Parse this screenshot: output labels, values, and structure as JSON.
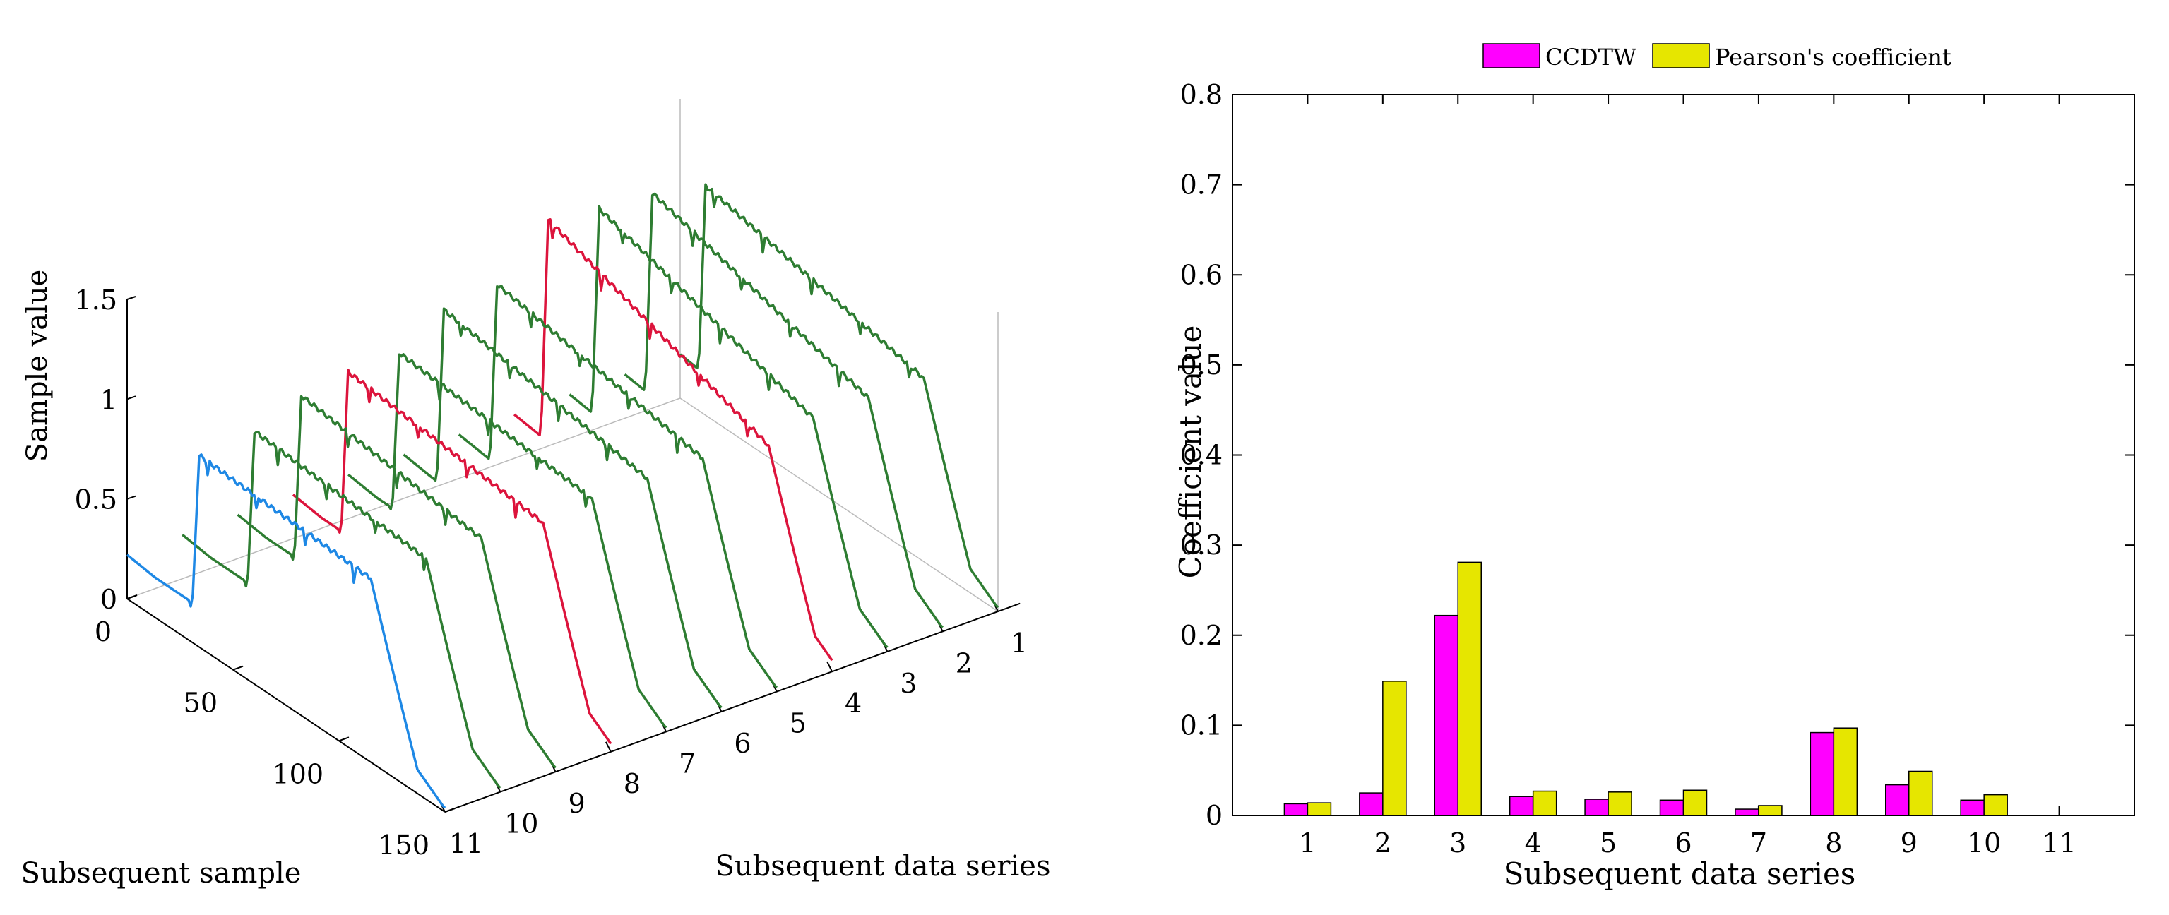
{
  "chart_data": [
    {
      "type": "line3d",
      "zlabel": "Sample value",
      "xlabel": "Subsequent sample",
      "ylabel": "Subsequent data series",
      "z_ticks": [
        "0",
        "0.5",
        "1",
        "1.5"
      ],
      "x_ticks": [
        "0",
        "50",
        "100",
        "150"
      ],
      "y_ticks": [
        "1",
        "2",
        "3",
        "4",
        "5",
        "6",
        "7",
        "8",
        "9",
        "10",
        "11"
      ],
      "zlim": [
        0,
        1.5
      ],
      "xlim": [
        0,
        150
      ],
      "ylim": [
        1,
        11
      ],
      "series": [
        {
          "series_index": 1,
          "color": "#2e7d32",
          "rise_at": 8,
          "fall_at": 115,
          "peak": 1.15
        },
        {
          "series_index": 2,
          "color": "#2e7d32",
          "rise_at": 9,
          "fall_at": 115,
          "peak": 1.22
        },
        {
          "series_index": 3,
          "color": "#2e7d32",
          "rise_at": 10,
          "fall_at": 115,
          "peak": 1.25
        },
        {
          "series_index": 4,
          "color": "#dc143c",
          "rise_at": 12,
          "fall_at": 120,
          "peak": 1.31
        },
        {
          "series_index": 5,
          "color": "#2e7d32",
          "rise_at": 14,
          "fall_at": 115,
          "peak": 1.1
        },
        {
          "series_index": 6,
          "color": "#2e7d32",
          "rise_at": 15,
          "fall_at": 115,
          "peak": 1.08
        },
        {
          "series_index": 7,
          "color": "#2e7d32",
          "rise_at": 20,
          "fall_at": 115,
          "peak": 1.0
        },
        {
          "series_index": 8,
          "color": "#dc143c",
          "rise_at": 22,
          "fall_at": 118,
          "peak": 1.02
        },
        {
          "series_index": 9,
          "color": "#2e7d32",
          "rise_at": 26,
          "fall_at": 115,
          "peak": 1.03
        },
        {
          "series_index": 10,
          "color": "#2e7d32",
          "rise_at": 30,
          "fall_at": 115,
          "peak": 0.98
        },
        {
          "series_index": 11,
          "color": "#1e88e5",
          "rise_at": 30,
          "fall_at": 115,
          "peak": 0.96
        }
      ]
    },
    {
      "type": "bar",
      "categories": [
        "1",
        "2",
        "3",
        "4",
        "5",
        "6",
        "7",
        "8",
        "9",
        "10"
      ],
      "x_ticks": [
        "1",
        "2",
        "3",
        "4",
        "5",
        "6",
        "7",
        "8",
        "9",
        "10",
        "11"
      ],
      "xlabel": "Subsequent data series",
      "ylabel": "Coefficient value",
      "ylim": [
        0,
        0.8
      ],
      "y_ticks": [
        "0",
        "0.1",
        "0.2",
        "0.3",
        "0.4",
        "0.5",
        "0.6",
        "0.7",
        "0.8"
      ],
      "legend_position": "top-center",
      "series": [
        {
          "name": "CCDTW",
          "color": "#ff00ff",
          "values": [
            0.013,
            0.025,
            0.222,
            0.021,
            0.018,
            0.017,
            0.007,
            0.092,
            0.034,
            0.017
          ]
        },
        {
          "name": "Pearson's coefficient",
          "color": "#e6e600",
          "values": [
            0.014,
            0.149,
            0.281,
            0.027,
            0.026,
            0.028,
            0.011,
            0.097,
            0.049,
            0.023
          ]
        }
      ]
    }
  ]
}
